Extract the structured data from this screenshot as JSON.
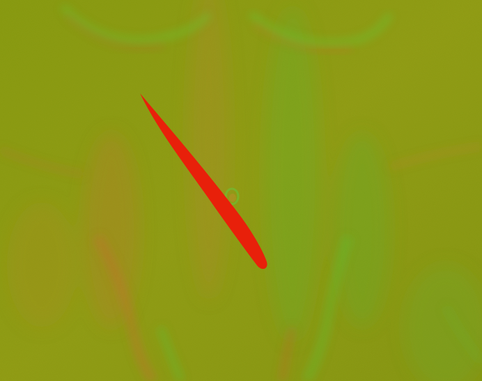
{
  "image": {
    "kind": "normal-map texture of a torso surface with an incision mark",
    "base_color": "#8c9a12",
    "relief_green": "#5fb82a",
    "relief_orange": "#c0782a",
    "relief_shadow": "#6e7a08",
    "mark_color": "#e8200a"
  }
}
